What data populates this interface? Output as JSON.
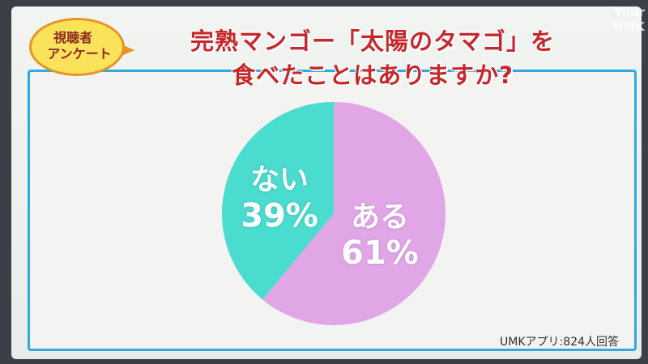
{
  "badge": {
    "line1": "視聴者",
    "line2": "アンケート"
  },
  "title": {
    "line1": "完熟マンゴー「太陽のタマゴ」を",
    "line2": "食べたことはありますか?"
  },
  "watermark": {
    "line1": "Your",
    "line2": "UMK"
  },
  "source": "UMKアプリ:824人回答",
  "colors": {
    "aru": "#e0a6e6",
    "nai": "#49dccf",
    "frame_border": "#33a8de",
    "title": "#c6272b",
    "badge_fill": "#fbe25b"
  },
  "chart_data": {
    "type": "pie",
    "title": "完熟マンゴー「太陽のタマゴ」を食べたことはありますか?",
    "slices": [
      {
        "label": "ある",
        "value": 61,
        "display": "61%",
        "color": "#e0a6e6"
      },
      {
        "label": "ない",
        "value": 39,
        "display": "39%",
        "color": "#49dccf"
      }
    ]
  }
}
